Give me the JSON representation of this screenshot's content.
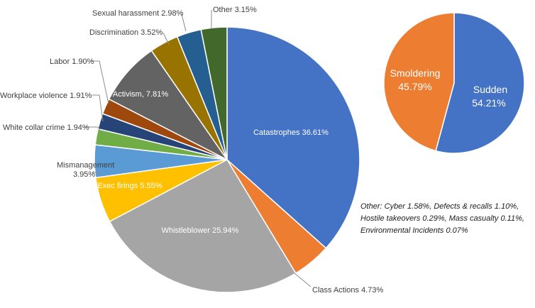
{
  "chart_data": [
    {
      "type": "pie",
      "title": "",
      "slices": [
        {
          "label": "Catastrophes",
          "value": 36.61,
          "display": "Catastrophes 36.61%",
          "color": "#4472C4"
        },
        {
          "label": "Class Actions",
          "value": 4.73,
          "display": "Class Actions 4.73%",
          "color": "#ED7D31"
        },
        {
          "label": "Whistleblower",
          "value": 25.94,
          "display": "Whistleblower 25.94%",
          "color": "#A5A5A5"
        },
        {
          "label": "Exec firings",
          "value": 5.55,
          "display": "Exec firings 5.55%",
          "color": "#FFC000"
        },
        {
          "label": "Mismanagement",
          "value": 3.95,
          "display_line1": "Mismanagement",
          "display_line2": "3.95%",
          "color": "#5B9BD5"
        },
        {
          "label": "White collar crime",
          "value": 1.94,
          "display": "White collar crime 1.94%",
          "color": "#70AD47"
        },
        {
          "label": "Workplace violence",
          "value": 1.91,
          "display": "Workplace violence 1.91%",
          "color": "#264478"
        },
        {
          "label": "Labor",
          "value": 1.9,
          "display": "Labor 1.90%",
          "color": "#9E480E"
        },
        {
          "label": "Activism",
          "value": 7.81,
          "display": "Activism, 7.81%",
          "color": "#636363"
        },
        {
          "label": "Discrimination",
          "value": 3.52,
          "display": "Discrimination  3.52%",
          "color": "#997300"
        },
        {
          "label": "Sexual harassment",
          "value": 2.98,
          "display": "Sexual harassment 2.98%",
          "color": "#255E91"
        },
        {
          "label": "Other",
          "value": 3.15,
          "display": "Other 3.15%",
          "color": "#43682B"
        }
      ]
    },
    {
      "type": "pie",
      "title": "",
      "slices": [
        {
          "label": "Sudden",
          "value": 54.21,
          "display_line1": "Sudden",
          "display_line2": "54.21%",
          "color": "#4472C4"
        },
        {
          "label": "Smoldering",
          "value": 45.79,
          "display_line1": "Smoldering",
          "display_line2": "45.79%",
          "color": "#ED7D31"
        }
      ]
    }
  ],
  "note": {
    "text": "Other: Cyber 1.58%, Defects & recalls 1.10%, Hostile takeovers 0.29%, Mass casualty 0.11%, Environmental Incidents 0.07%"
  }
}
